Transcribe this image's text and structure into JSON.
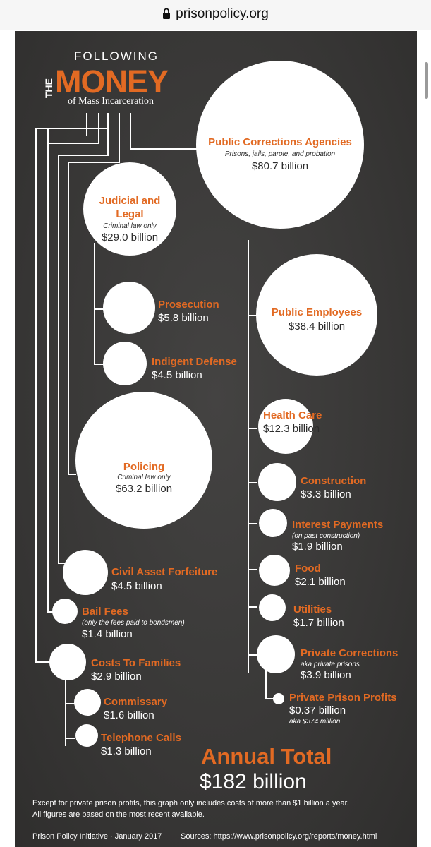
{
  "browser": {
    "url": "prisonpolicy.org"
  },
  "title": {
    "line1": "FOLLOWING",
    "the": "THE",
    "money": "MONEY",
    "line3": "of Mass Incarceration"
  },
  "items": {
    "public_corrections": {
      "label": "Public Corrections Agencies",
      "sub": "Prisons, jails, parole, and probation",
      "amount": "$80.7 billion"
    },
    "judicial": {
      "label1": "Judicial and",
      "label2": "Legal",
      "sub": "Criminal law only",
      "amount": "$29.0 billion"
    },
    "prosecution": {
      "label": "Prosecution",
      "amount": "$5.8 billion"
    },
    "indigent": {
      "label": "Indigent Defense",
      "amount": "$4.5 billion"
    },
    "policing": {
      "label": "Policing",
      "sub": "Criminal law only",
      "amount": "$63.2 billion"
    },
    "asset": {
      "label": "Civil Asset Forfeiture",
      "amount": "$4.5 billion"
    },
    "bail": {
      "label": "Bail Fees",
      "sub": "(only the fees paid to bondsmen)",
      "amount": "$1.4 billion"
    },
    "families": {
      "label": "Costs To Families",
      "amount": "$2.9 billion"
    },
    "commissary": {
      "label": "Commissary",
      "amount": "$1.6 billion"
    },
    "telephone": {
      "label": "Telephone Calls",
      "amount": "$1.3 billion"
    },
    "employees": {
      "label": "Public Employees",
      "amount": "$38.4 billion"
    },
    "health": {
      "label": "Health Care",
      "amount": "$12.3 billion"
    },
    "construction": {
      "label": "Construction",
      "amount": "$3.3 billion"
    },
    "interest": {
      "label": "Interest Payments",
      "sub": "(on past construction)",
      "amount": "$1.9 billion"
    },
    "food": {
      "label": "Food",
      "amount": "$2.1 billion"
    },
    "utilities": {
      "label": "Utilities",
      "amount": "$1.7 billion"
    },
    "private_corr": {
      "label": "Private Corrections",
      "sub": "aka private prisons",
      "amount": "$3.9 billion"
    },
    "private_profits": {
      "label": "Private Prison Profits",
      "amount": "$0.37 billion",
      "sub": "aka $374 million"
    }
  },
  "total": {
    "label": "Annual Total",
    "amount": "$182 billion"
  },
  "footnote": {
    "line1": "Except for private prison profits, this graph only includes costs of more than $1 billion a year.",
    "line2": "All figures are based on the most recent available."
  },
  "credits": {
    "left": "Prison Policy Initiative · January 2017",
    "right": "Sources: https://www.prisonpolicy.org/reports/money.html"
  },
  "colors": {
    "accent": "#e26a23",
    "background": "#3c3b3a"
  }
}
